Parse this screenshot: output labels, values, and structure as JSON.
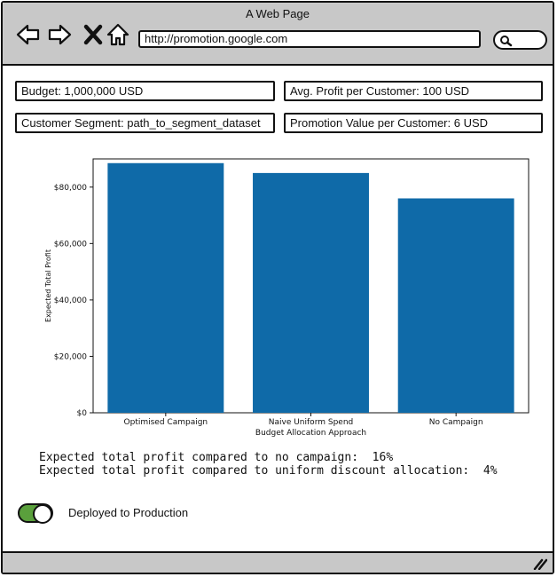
{
  "window": {
    "title": "A Web Page"
  },
  "browser": {
    "url": "http://promotion.google.com",
    "icons": [
      "back-icon",
      "forward-icon",
      "close-icon",
      "home-icon",
      "search-icon"
    ]
  },
  "info": {
    "budget": "Budget: 1,000,000 USD",
    "avg_profit": "Avg. Profit per Customer: 100 USD",
    "segment": "Customer Segment: path_to_segment_dataset",
    "promotion_value": "Promotion Value per Customer: 6 USD"
  },
  "chart_data": {
    "type": "bar",
    "categories": [
      "Optimised Campaign",
      "Naive Uniform Spend",
      "No Campaign"
    ],
    "values": [
      88500,
      85000,
      76000
    ],
    "xlabel": "Budget Allocation Approach",
    "ylabel": "Expected Total Profit",
    "ylim": [
      0,
      90000
    ],
    "yticks": [
      0,
      20000,
      40000,
      60000,
      80000
    ],
    "ytick_labels": [
      "$0",
      "$20,000",
      "$40,000",
      "$60,000",
      "$80,000"
    ],
    "bar_color": "#0f6aa8",
    "grid": false
  },
  "summary": {
    "line1": "Expected total profit compared to no campaign:  16%",
    "line2": "Expected total profit compared to uniform discount allocation:  4%"
  },
  "deployment": {
    "toggle_on": true,
    "toggle_color": "#5aa03c",
    "label": "Deployed to Production"
  }
}
